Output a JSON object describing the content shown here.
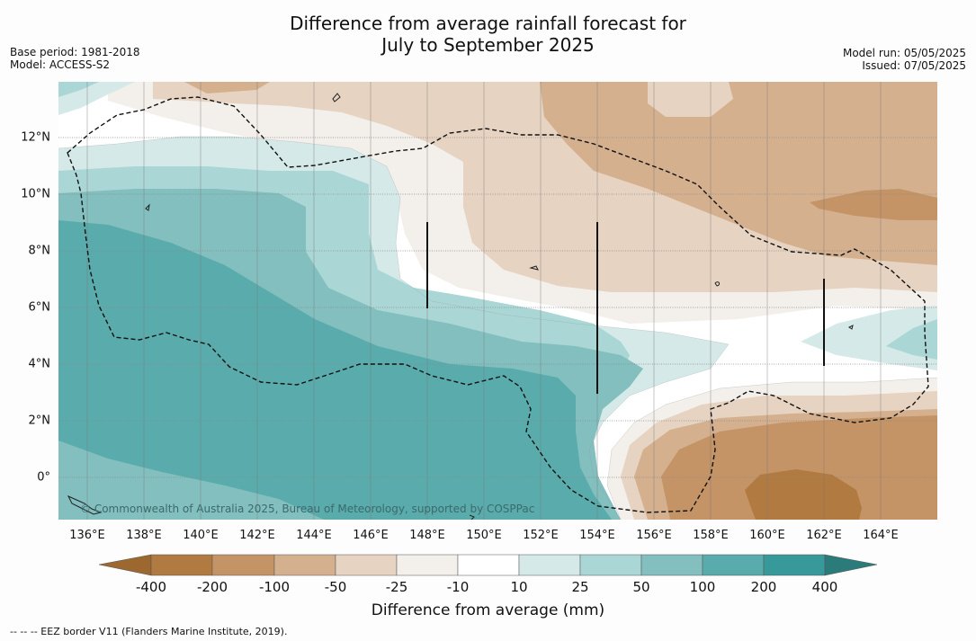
{
  "title_line1": "Difference from average rainfall forecast for",
  "title_line2": "July to September 2025",
  "meta_left": {
    "base_period": "Base period: 1981-2018",
    "model": "Model: ACCESS-S2"
  },
  "meta_right": {
    "model_run": "Model run: 05/05/2025",
    "issued": "Issued: 07/05/2025"
  },
  "lon_labels": [
    "136°E",
    "138°E",
    "140°E",
    "142°E",
    "144°E",
    "146°E",
    "148°E",
    "150°E",
    "152°E",
    "154°E",
    "156°E",
    "158°E",
    "160°E",
    "162°E",
    "164°E"
  ],
  "lat_labels": [
    "12°N",
    "10°N",
    "8°N",
    "6°N",
    "4°N",
    "2°N",
    "0°"
  ],
  "copyright": "© Commonwealth of Australia 2025, Bureau of Meteorology, supported by COSPPac",
  "colorbar": {
    "ticks": [
      "-400",
      "-200",
      "-100",
      "-50",
      "-25",
      "-10",
      "10",
      "25",
      "50",
      "100",
      "200",
      "400"
    ],
    "colors": [
      "#9c6830",
      "#b07a40",
      "#c49466",
      "#d4b08e",
      "#e6d3c1",
      "#f3efea",
      "#ffffff",
      "#d4e9e8",
      "#aad6d5",
      "#82bfbe",
      "#5aabac",
      "#37999a",
      "#2b7b7b"
    ],
    "title": "Difference from average (mm)"
  },
  "footer": "--  --  -- EEZ border V11 (Flanders Marine Institute, 2019)."
}
